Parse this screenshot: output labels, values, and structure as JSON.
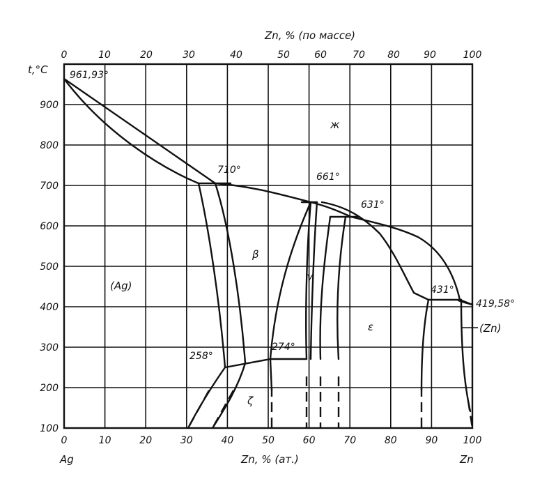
{
  "top_axis": {
    "title": "Zn, % (по массе)",
    "ticks": [
      "0",
      "10",
      "20",
      "30",
      "40",
      "50",
      "60",
      "70",
      "80",
      "90",
      "100"
    ]
  },
  "bottom_axis": {
    "title": "Zn, % (ат.)",
    "ticks": [
      "0",
      "10",
      "20",
      "30",
      "40",
      "50",
      "60",
      "70",
      "80",
      "90",
      "100"
    ],
    "left_end": "Ag",
    "right_end": "Zn"
  },
  "y_axis": {
    "title": "t,°C",
    "ticks": [
      "100",
      "200",
      "300",
      "400",
      "500",
      "600",
      "700",
      "800",
      "900"
    ]
  },
  "annotations": {
    "ag_melting": "961,93°",
    "t710": "710°",
    "t661": "661°",
    "t631": "631°",
    "t431": "431°",
    "zn_melting": "419,58°",
    "t258": "258°",
    "t274": "274°"
  },
  "phases": {
    "liquid": "ж",
    "ag": "(Ag)",
    "beta": "β",
    "gamma": "γ",
    "epsilon": "ε",
    "zeta": "ζ",
    "zn": "(Zn)"
  },
  "colors": {
    "line": "#111111",
    "background": "#ffffff"
  }
}
